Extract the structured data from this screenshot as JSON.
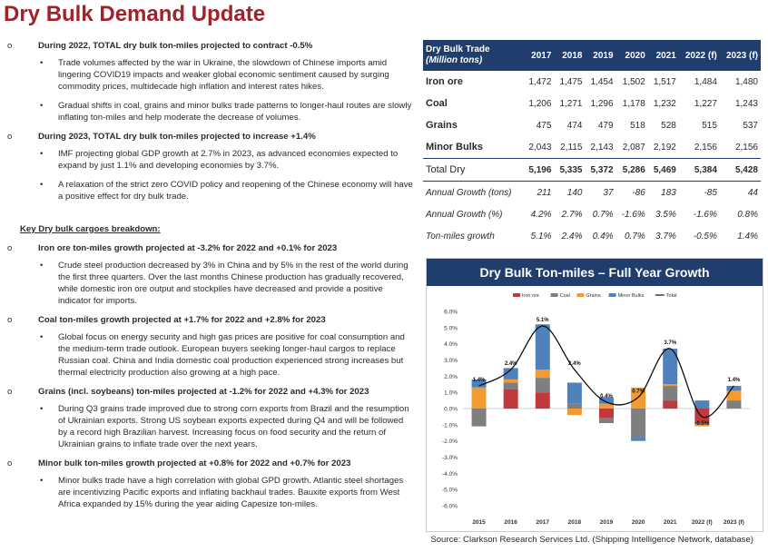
{
  "title": "Dry Bulk Demand Update",
  "left": {
    "b2022": "During 2022, TOTAL dry bulk ton-miles projected to contract -0.5%",
    "b2022_1": "Trade volumes affected by the war in Ukraine, the slowdown of Chinese imports amid lingering COVID19 impacts and weaker global economic sentiment caused by surging commodity prices, multidecade high inflation and interest rates hikes.",
    "b2022_2": "Gradual shifts in coal, grains and minor bulks trade patterns to longer-haul routes are slowly inflating ton-miles and help moderate the decrease of volumes.",
    "b2023": "During 2023, TOTAL dry bulk ton-miles projected to increase +1.4%",
    "b2023_1": "IMF projecting global GDP growth at 2.7% in 2023, as advanced economies expected to expand by just 1.1% and developing economies by 3.7%.",
    "b2023_2": "A relaxation of the strict zero COVID policy and reopening of the Chinese economy will have a positive effect for dry bulk trade.",
    "section": "Key Dry bulk cargoes breakdown:",
    "iron": "Iron ore ton-miles growth projected at -3.2% for 2022 and +0.1% for 2023",
    "iron_1": "Crude steel production decreased by 3% in China and by 5% in the rest of the world during the first three quarters. Over the last months Chinese production has gradually recovered, while domestic iron ore output and stockpiles have decreased and provide a positive indicator for imports.",
    "coal": "Coal ton-miles growth projected at +1.7% for 2022 and +2.8% for 2023",
    "coal_1": "Global focus on energy security and high gas prices are positive for coal consumption and the medium-term trade outlook. European buyers seeking longer-haul cargos to replace Russian coal. China and India domestic coal production experienced strong increases but thermal electricity production also growing at a high pace.",
    "grains": "Grains (incl. soybeans) ton-miles projected at -1.2% for 2022 and +4.3% for 2023",
    "grains_1": "During Q3 grains trade improved due to strong corn exports from Brazil and the resumption of Ukrainian exports. Strong US soybean exports expected during Q4 and will be followed by a record high Brazilian harvest. Increasing focus on food security and the return of Ukrainian grains to inflate trade over the next years.",
    "minor": "Minor bulk ton-miles growth projected at +0.8% for 2022 and +0.7% for 2023",
    "minor_1": "Minor bulks trade have a high correlation with global GPD growth. Atlantic steel shortages are incentivizing Pacific exports and inflating backhaul trades. Bauxite exports from West Africa expanded by 15% during the year aiding Capesize ton-miles.",
    "marker_circle": "o",
    "marker_bullet": "•"
  },
  "table": {
    "header_line1": "Dry Bulk Trade",
    "header_line2": "(Million tons)",
    "years": [
      "2017",
      "2018",
      "2019",
      "2020",
      "2021",
      "2022 (f)",
      "2023 (f)"
    ],
    "rows": [
      {
        "label": "Iron ore",
        "values": [
          "1,472",
          "1,475",
          "1,454",
          "1,502",
          "1,517",
          "1,484",
          "1,480"
        ]
      },
      {
        "label": "Coal",
        "values": [
          "1,206",
          "1,271",
          "1,296",
          "1,178",
          "1,232",
          "1,227",
          "1,243"
        ]
      },
      {
        "label": "Grains",
        "values": [
          "475",
          "474",
          "479",
          "518",
          "528",
          "515",
          "537"
        ]
      },
      {
        "label": "Minor Bulks",
        "values": [
          "2,043",
          "2,115",
          "2,143",
          "2,087",
          "2,192",
          "2,156",
          "2,156"
        ]
      },
      {
        "label": "Total Dry",
        "values": [
          "5,196",
          "5,335",
          "5,372",
          "5,286",
          "5,469",
          "5,384",
          "5,428"
        ]
      },
      {
        "label": "Annual Growth (tons)",
        "values": [
          "211",
          "140",
          "37",
          "-86",
          "183",
          "-85",
          "44"
        ]
      },
      {
        "label": "Annual Growth (%)",
        "values": [
          "4.2%",
          "2.7%",
          "0.7%",
          "-1.6%",
          "3.5%",
          "-1.6%",
          "0.8%"
        ]
      },
      {
        "label": "Ton-miles growth",
        "values": [
          "5.1%",
          "2.4%",
          "0.4%",
          "0.7%",
          "3.7%",
          "-0.5%",
          "1.4%"
        ]
      }
    ]
  },
  "chart_data": {
    "type": "bar",
    "title": "Dry Bulk Ton-miles – Full Year Growth",
    "categories": [
      "2015",
      "2016",
      "2017",
      "2018",
      "2019",
      "2020",
      "2021",
      "2022 (f)",
      "2023 (f)"
    ],
    "ylim": [
      -6.0,
      6.0
    ],
    "yticks": [
      "6.0%",
      "5.0%",
      "4.0%",
      "3.0%",
      "2.0%",
      "1.0%",
      "0.0%",
      "-1.0%",
      "-2.0%",
      "-3.0%",
      "-4.0%",
      "-5.0%",
      "-6.0%"
    ],
    "stacked": true,
    "series": [
      {
        "name": "Iron ore",
        "color": "#c0393b",
        "values": [
          0.0,
          1.2,
          1.0,
          0.0,
          -0.6,
          0.0,
          0.5,
          -0.9,
          0.0
        ]
      },
      {
        "name": "Coal",
        "color": "#7f7f7f",
        "values": [
          -1.1,
          0.4,
          0.9,
          0.3,
          -0.3,
          -1.8,
          0.9,
          -0.1,
          0.5
        ]
      },
      {
        "name": "Grains",
        "color": "#f39a32",
        "values": [
          1.3,
          0.2,
          0.5,
          -0.4,
          0.3,
          1.3,
          0.1,
          -0.1,
          0.6
        ]
      },
      {
        "name": "Minor Bulks",
        "color": "#4f81bd",
        "values": [
          0.5,
          0.7,
          2.8,
          1.3,
          0.4,
          -0.2,
          2.2,
          0.5,
          0.3
        ]
      }
    ],
    "total": {
      "name": "Total",
      "color": "#111111",
      "values": [
        1.4,
        2.4,
        5.1,
        2.4,
        0.4,
        0.7,
        3.7,
        -0.5,
        1.4
      ],
      "labels": [
        "1.4%",
        "2.4%",
        "5.1%",
        "2.4%",
        "0.4%",
        "0.7%",
        "3.7%",
        "-0.5%",
        "1.4%"
      ]
    }
  },
  "source": "Source: Clarkson Research Services Ltd. (Shipping Intelligence Network, database)"
}
